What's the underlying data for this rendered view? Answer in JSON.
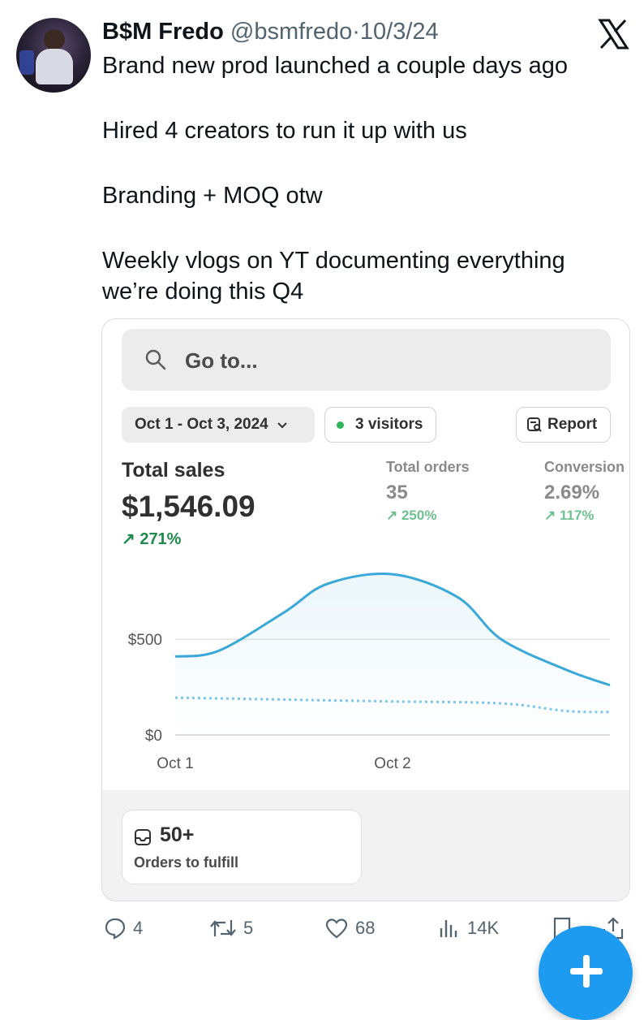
{
  "tweet": {
    "author_name": "B$M Fredo",
    "handle": "@bsmfredo",
    "separator": "·",
    "date": "10/3/24",
    "paragraphs": [
      "Brand new prod launched a couple days ago",
      "Hired 4 creators to run it up with us",
      "Branding + MOQ otw",
      "Weekly vlogs on YT documenting everything we’re doing this Q4"
    ]
  },
  "dashboard": {
    "search_placeholder": "Go to...",
    "date_range": "Oct 1 - Oct 3, 2024",
    "visitors": "3 visitors",
    "report_label": "Report",
    "total_sales": {
      "label": "Total sales",
      "value": "$1,546.09",
      "change": "↗ 271%"
    },
    "total_orders": {
      "label": "Total orders",
      "value": "35",
      "change": "↗ 250%"
    },
    "conversion": {
      "label": "Conversion",
      "value": "2.69%",
      "change": "↗ 117%"
    },
    "fulfill": {
      "count": "50+",
      "label": "Orders to fulfill"
    }
  },
  "chart_data": {
    "type": "line",
    "x_tick_labels": [
      "Oct 1",
      "Oct 2"
    ],
    "y_tick_labels": [
      "$0",
      "$500"
    ],
    "ylim": [
      0,
      900
    ],
    "xlim": [
      0,
      2
    ],
    "grid": true,
    "series": [
      {
        "style": "solid",
        "color": "#3aa8d8",
        "x": [
          0,
          0.2,
          0.5,
          0.7,
          1.0,
          1.3,
          1.5,
          1.8,
          2.0
        ],
        "y": [
          410,
          440,
          640,
          790,
          840,
          720,
          500,
          340,
          260
        ]
      },
      {
        "style": "dotted",
        "color": "#7cc8ea",
        "x": [
          0,
          0.5,
          1.0,
          1.5,
          1.8,
          2.0
        ],
        "y": [
          195,
          185,
          175,
          165,
          125,
          120
        ]
      }
    ]
  },
  "actions": {
    "replies": "4",
    "retweets": "5",
    "likes": "68",
    "views": "14K"
  },
  "colors": {
    "accent": "#1d9bf0",
    "positive": "#1f8a4c",
    "chart_line": "#3aa8d8"
  }
}
